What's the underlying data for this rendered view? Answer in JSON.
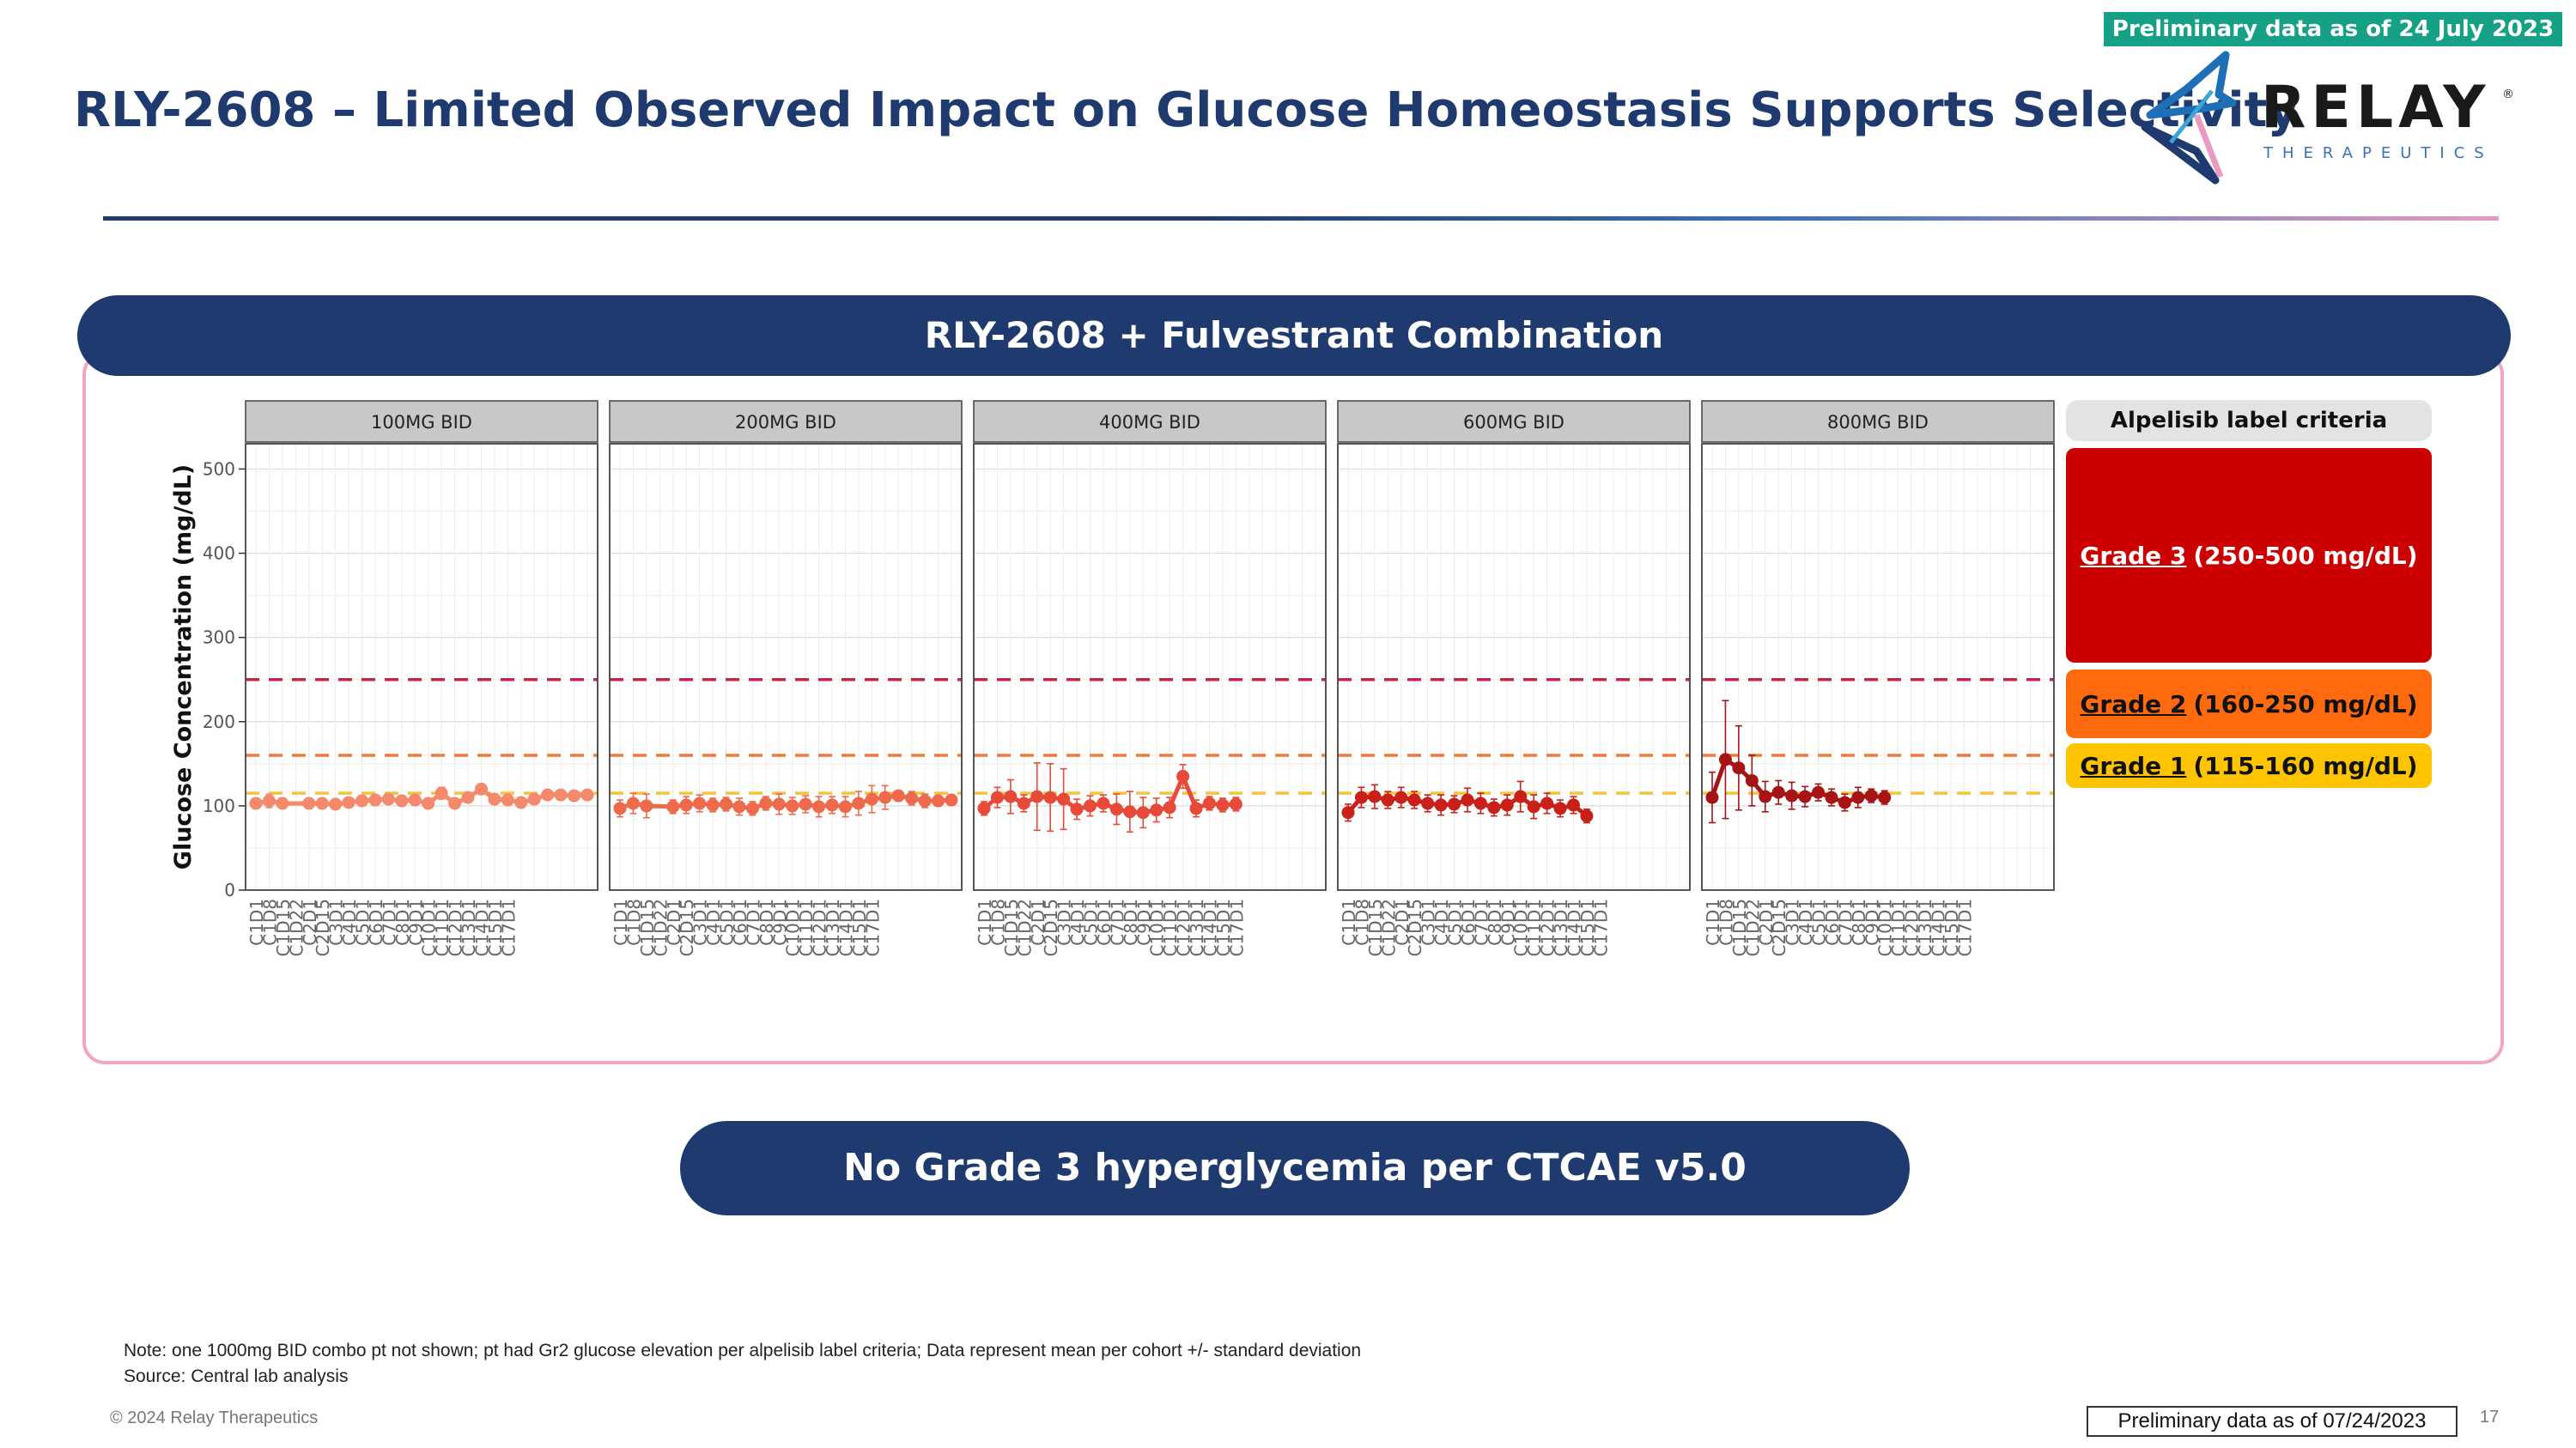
{
  "header": {
    "preliminary_tag": "Preliminary data as of 24 July 2023",
    "title": "RLY-2608 – Limited Observed Impact on Glucose Homeostasis Supports Selectivity",
    "logo_text": "RELAY",
    "logo_subtext": "THERAPEUTICS",
    "logo_mark": "®"
  },
  "panel": {
    "banner": "RLY-2608 + Fulvestrant Combination"
  },
  "criteria": {
    "header": "Alpelisib label criteria",
    "grade3_label": "Grade 3",
    "grade3_range": "(250-500 mg/dL)",
    "grade2_label": "Grade 2",
    "grade2_range": "(160-250 mg/dL)",
    "grade1_label": "Grade 1",
    "grade1_range": "(115-160 mg/dL)"
  },
  "bottom_banner": "No Grade 3 hyperglycemia per CTCAE v5.0",
  "footer": {
    "note": "Note: one 1000mg BID combo pt not shown; pt had Gr2 glucose elevation per alpelisib label criteria; Data represent mean per cohort +/- standard deviation",
    "source": "Source: Central lab analysis",
    "copyright": "© 2024 Relay Therapeutics",
    "preliminary_box": "Preliminary data as of 07/24/2023",
    "page_number": "17"
  },
  "colors": {
    "navy": "#1f3a6e",
    "teal": "#16a085",
    "grade3": "#cc0000",
    "grade2": "#ff6a0f",
    "grade1": "#ffc400",
    "panel_border": "#f2a6c6"
  },
  "chart_data": {
    "type": "line",
    "ylabel": "Glucose Concentration (mg/dL)",
    "xlabel": "",
    "ylim": [
      0,
      530
    ],
    "yticks": [
      0,
      100,
      200,
      300,
      400,
      500
    ],
    "grid": true,
    "x": [
      "C1D1",
      "C1D8",
      "C1D15",
      "C1D22",
      "C2D1",
      "C2D15",
      "C3D1",
      "C4D1",
      "C5D1",
      "C6D1",
      "C7D1",
      "C8D1",
      "C9D1",
      "C10D1",
      "C11D1",
      "C12D1",
      "C13D1",
      "C14D1",
      "C15D1",
      "C17D1"
    ],
    "reference_lines": [
      {
        "value": 250,
        "color": "#c0284a"
      },
      {
        "value": 160,
        "color": "#f07a3a"
      },
      {
        "value": 115,
        "color": "#f5c242"
      }
    ],
    "panels": [
      {
        "name": "100MG BID",
        "color": "#f4896b",
        "x": [
          1,
          2,
          3,
          5,
          6,
          7,
          8,
          9,
          10,
          11,
          12,
          13,
          14,
          15,
          16,
          17,
          18,
          19,
          20,
          21,
          22,
          23,
          24,
          25,
          26
        ],
        "values": [
          103,
          106,
          103,
          103,
          103,
          102,
          104,
          106,
          107,
          108,
          106,
          107,
          103,
          115,
          103,
          110,
          120,
          108,
          107,
          104,
          108,
          113,
          113,
          112,
          113
        ],
        "sd": [
          6,
          8,
          6,
          4,
          4,
          6,
          5,
          6,
          6,
          5,
          6,
          5,
          6,
          7,
          6,
          6,
          5,
          6,
          6,
          6,
          5,
          5,
          5,
          4,
          4
        ]
      },
      {
        "name": "200MG BID",
        "color": "#ee6a4c",
        "x": [
          1,
          2,
          3,
          5,
          6,
          7,
          8,
          9,
          10,
          11,
          12,
          13,
          14,
          15,
          16,
          17,
          18,
          19,
          20,
          21,
          22,
          23,
          24,
          25,
          26
        ],
        "values": [
          97,
          103,
          100,
          99,
          101,
          103,
          101,
          102,
          99,
          97,
          103,
          102,
          100,
          102,
          99,
          101,
          99,
          103,
          108,
          110,
          112,
          109,
          106,
          106,
          107
        ],
        "sd": [
          10,
          12,
          14,
          8,
          10,
          10,
          8,
          8,
          10,
          8,
          8,
          12,
          10,
          10,
          12,
          10,
          12,
          14,
          16,
          14,
          6,
          8,
          8,
          6,
          6
        ]
      },
      {
        "name": "400MG BID",
        "color": "#e84a3a",
        "x": [
          1,
          2,
          3,
          4,
          5,
          6,
          7,
          8,
          9,
          10,
          11,
          12,
          13,
          14,
          15,
          16,
          17,
          18,
          19,
          20
        ],
        "values": [
          97,
          110,
          111,
          103,
          111,
          110,
          108,
          96,
          100,
          103,
          96,
          93,
          92,
          95,
          98,
          135,
          97,
          103,
          101,
          102
        ],
        "sd": [
          8,
          12,
          20,
          10,
          40,
          40,
          36,
          12,
          12,
          10,
          18,
          24,
          18,
          14,
          12,
          14,
          10,
          8,
          8,
          8
        ]
      },
      {
        "name": "600MG BID",
        "color": "#c9201a",
        "x": [
          1,
          2,
          3,
          4,
          5,
          6,
          7,
          8,
          9,
          10,
          11,
          12,
          13,
          14,
          15,
          16,
          17,
          18,
          19
        ],
        "values": [
          92,
          110,
          111,
          107,
          110,
          107,
          103,
          101,
          102,
          107,
          103,
          98,
          101,
          111,
          99,
          103,
          97,
          101,
          88
        ],
        "sd": [
          10,
          12,
          14,
          10,
          12,
          10,
          10,
          12,
          10,
          14,
          12,
          10,
          12,
          18,
          14,
          12,
          10,
          10,
          8
        ]
      },
      {
        "name": "800MG BID",
        "color": "#a51515",
        "x": [
          1,
          2,
          3,
          4,
          5,
          6,
          7,
          8,
          9,
          10,
          11,
          12,
          13,
          14
        ],
        "values": [
          110,
          155,
          145,
          130,
          111,
          116,
          112,
          111,
          116,
          110,
          104,
          110,
          112,
          110
        ],
        "sd": [
          30,
          70,
          50,
          30,
          18,
          14,
          16,
          12,
          10,
          10,
          10,
          12,
          8,
          8
        ]
      }
    ]
  }
}
